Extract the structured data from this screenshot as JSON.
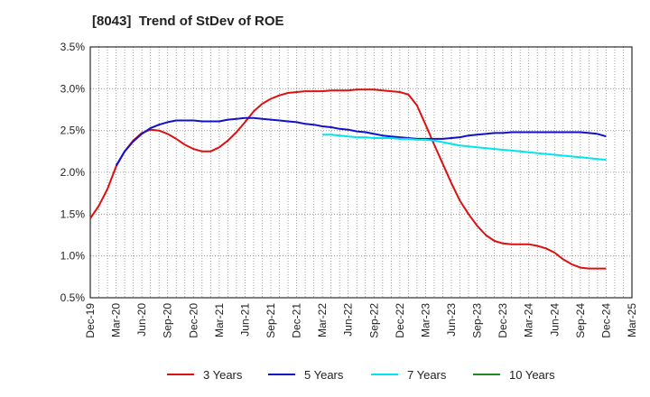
{
  "title": "[8043]  Trend of StDev of ROE",
  "chart_data": {
    "type": "line",
    "title": "[8043]  Trend of StDev of ROE",
    "xlabel": "",
    "ylabel": "",
    "x_ticks": [
      "Dec-19",
      "Mar-20",
      "Jun-20",
      "Sep-20",
      "Dec-20",
      "Mar-21",
      "Jun-21",
      "Sep-21",
      "Dec-21",
      "Mar-22",
      "Jun-22",
      "Sep-22",
      "Dec-22",
      "Mar-23",
      "Jun-23",
      "Sep-23",
      "Dec-23",
      "Mar-24",
      "Jun-24",
      "Sep-24",
      "Dec-24",
      "Mar-25"
    ],
    "y_ticks": [
      "0.5%",
      "1.0%",
      "1.5%",
      "2.0%",
      "2.5%",
      "3.0%",
      "3.5%"
    ],
    "ylim": [
      0.5,
      3.5
    ],
    "y_unit": "%",
    "grid": true,
    "legend_position": "bottom",
    "series": [
      {
        "name": "3 Years",
        "color": "#dd1111",
        "x": [
          "Dec-19",
          "Jan-20",
          "Feb-20",
          "Mar-20",
          "Apr-20",
          "May-20",
          "Jun-20",
          "Jul-20",
          "Aug-20",
          "Sep-20",
          "Oct-20",
          "Nov-20",
          "Dec-20",
          "Jan-21",
          "Feb-21",
          "Mar-21",
          "Apr-21",
          "May-21",
          "Jun-21",
          "Jul-21",
          "Aug-21",
          "Sep-21",
          "Oct-21",
          "Nov-21",
          "Dec-21",
          "Jan-22",
          "Feb-22",
          "Mar-22",
          "Apr-22",
          "May-22",
          "Jun-22",
          "Jul-22",
          "Aug-22",
          "Sep-22",
          "Oct-22",
          "Nov-22",
          "Dec-22",
          "Jan-23",
          "Feb-23",
          "Mar-23",
          "Apr-23",
          "May-23",
          "Jun-23",
          "Jul-23",
          "Aug-23",
          "Sep-23",
          "Oct-23",
          "Nov-23",
          "Dec-23",
          "Jan-24",
          "Feb-24",
          "Mar-24",
          "Apr-24",
          "May-24",
          "Jun-24",
          "Jul-24",
          "Aug-24",
          "Sep-24",
          "Oct-24",
          "Nov-24",
          "Dec-24"
        ],
        "values": [
          1.45,
          1.6,
          1.8,
          2.07,
          2.25,
          2.38,
          2.47,
          2.51,
          2.5,
          2.46,
          2.4,
          2.33,
          2.28,
          2.25,
          2.25,
          2.3,
          2.38,
          2.48,
          2.6,
          2.73,
          2.82,
          2.88,
          2.92,
          2.95,
          2.96,
          2.97,
          2.97,
          2.97,
          2.98,
          2.98,
          2.98,
          2.99,
          2.99,
          2.99,
          2.98,
          2.97,
          2.96,
          2.93,
          2.8,
          2.57,
          2.33,
          2.1,
          1.87,
          1.66,
          1.5,
          1.36,
          1.25,
          1.18,
          1.15,
          1.14,
          1.14,
          1.14,
          1.12,
          1.09,
          1.04,
          0.96,
          0.9,
          0.86,
          0.85,
          0.85,
          0.85
        ]
      },
      {
        "name": "5 Years",
        "color": "#1111cc",
        "x": [
          "Mar-20",
          "Apr-20",
          "May-20",
          "Jun-20",
          "Jul-20",
          "Aug-20",
          "Sep-20",
          "Oct-20",
          "Nov-20",
          "Dec-20",
          "Jan-21",
          "Feb-21",
          "Mar-21",
          "Apr-21",
          "May-21",
          "Jun-21",
          "Jul-21",
          "Aug-21",
          "Sep-21",
          "Oct-21",
          "Nov-21",
          "Dec-21",
          "Jan-22",
          "Feb-22",
          "Mar-22",
          "Apr-22",
          "May-22",
          "Jun-22",
          "Jul-22",
          "Aug-22",
          "Sep-22",
          "Oct-22",
          "Nov-22",
          "Dec-22",
          "Jan-23",
          "Feb-23",
          "Mar-23",
          "Apr-23",
          "May-23",
          "Jun-23",
          "Jul-23",
          "Aug-23",
          "Sep-23",
          "Oct-23",
          "Nov-23",
          "Dec-23",
          "Jan-24",
          "Feb-24",
          "Mar-24",
          "Apr-24",
          "May-24",
          "Jun-24",
          "Jul-24",
          "Aug-24",
          "Sep-24",
          "Oct-24",
          "Nov-24",
          "Dec-24"
        ],
        "values": [
          2.08,
          2.25,
          2.37,
          2.46,
          2.53,
          2.57,
          2.6,
          2.62,
          2.62,
          2.62,
          2.61,
          2.61,
          2.61,
          2.63,
          2.64,
          2.65,
          2.65,
          2.64,
          2.63,
          2.62,
          2.61,
          2.6,
          2.58,
          2.57,
          2.55,
          2.54,
          2.52,
          2.51,
          2.49,
          2.48,
          2.46,
          2.44,
          2.43,
          2.42,
          2.41,
          2.4,
          2.4,
          2.4,
          2.4,
          2.41,
          2.42,
          2.44,
          2.45,
          2.46,
          2.47,
          2.47,
          2.48,
          2.48,
          2.48,
          2.48,
          2.48,
          2.48,
          2.48,
          2.48,
          2.48,
          2.47,
          2.46,
          2.43
        ]
      },
      {
        "name": "7 Years",
        "color": "#00e5ee",
        "x": [
          "Mar-22",
          "Apr-22",
          "May-22",
          "Jun-22",
          "Jul-22",
          "Aug-22",
          "Sep-22",
          "Oct-22",
          "Nov-22",
          "Dec-22",
          "Jan-23",
          "Feb-23",
          "Mar-23",
          "Apr-23",
          "May-23",
          "Jun-23",
          "Jul-23",
          "Aug-23",
          "Sep-23",
          "Oct-23",
          "Nov-23",
          "Dec-23",
          "Jan-24",
          "Feb-24",
          "Mar-24",
          "Apr-24",
          "May-24",
          "Jun-24",
          "Jul-24",
          "Aug-24",
          "Sep-24",
          "Oct-24",
          "Nov-24",
          "Dec-24"
        ],
        "values": [
          2.45,
          2.45,
          2.44,
          2.43,
          2.42,
          2.42,
          2.41,
          2.41,
          2.41,
          2.4,
          2.4,
          2.39,
          2.39,
          2.38,
          2.36,
          2.34,
          2.32,
          2.31,
          2.3,
          2.29,
          2.28,
          2.27,
          2.26,
          2.25,
          2.24,
          2.23,
          2.22,
          2.21,
          2.2,
          2.19,
          2.18,
          2.17,
          2.16,
          2.15
        ]
      },
      {
        "name": "10 Years",
        "color": "#228822",
        "x": [],
        "values": []
      }
    ]
  }
}
